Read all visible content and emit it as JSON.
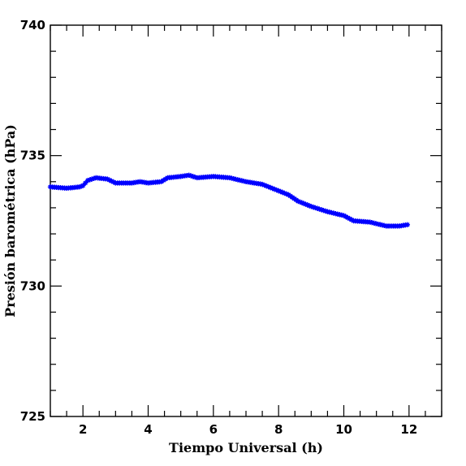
{
  "chart_data": {
    "type": "scatter",
    "xlabel": "Tiempo Universal (h)",
    "ylabel": "Presión barométrica (hPa)",
    "xlim": [
      1,
      13
    ],
    "ylim": [
      725,
      740
    ],
    "x_major_ticks": [
      2,
      4,
      6,
      8,
      10,
      12
    ],
    "y_major_ticks": [
      725,
      730,
      735,
      740
    ],
    "x_tick_labels": [
      "2",
      "4",
      "6",
      "8",
      "10",
      "12"
    ],
    "y_tick_labels": [
      "725",
      "730",
      "735",
      "740"
    ],
    "grid": false,
    "legend": "none",
    "marker": "star",
    "series": [
      {
        "color": "#0000ff",
        "points": [
          [
            1.0,
            733.8
          ],
          [
            1.5,
            733.75
          ],
          [
            1.9,
            733.8
          ],
          [
            2.0,
            733.85
          ],
          [
            2.15,
            734.05
          ],
          [
            2.4,
            734.15
          ],
          [
            2.75,
            734.1
          ],
          [
            3.0,
            733.95
          ],
          [
            3.5,
            733.95
          ],
          [
            3.75,
            734.0
          ],
          [
            4.0,
            733.95
          ],
          [
            4.4,
            734.0
          ],
          [
            4.6,
            734.15
          ],
          [
            5.0,
            734.2
          ],
          [
            5.25,
            734.25
          ],
          [
            5.5,
            734.15
          ],
          [
            6.0,
            734.2
          ],
          [
            6.5,
            734.15
          ],
          [
            7.0,
            734.0
          ],
          [
            7.5,
            733.9
          ],
          [
            8.0,
            733.65
          ],
          [
            8.3,
            733.5
          ],
          [
            8.6,
            733.25
          ],
          [
            9.0,
            733.05
          ],
          [
            9.5,
            732.85
          ],
          [
            10.0,
            732.7
          ],
          [
            10.3,
            732.5
          ],
          [
            10.8,
            732.45
          ],
          [
            11.3,
            732.3
          ],
          [
            11.7,
            732.3
          ],
          [
            11.95,
            732.35
          ]
        ]
      }
    ]
  }
}
